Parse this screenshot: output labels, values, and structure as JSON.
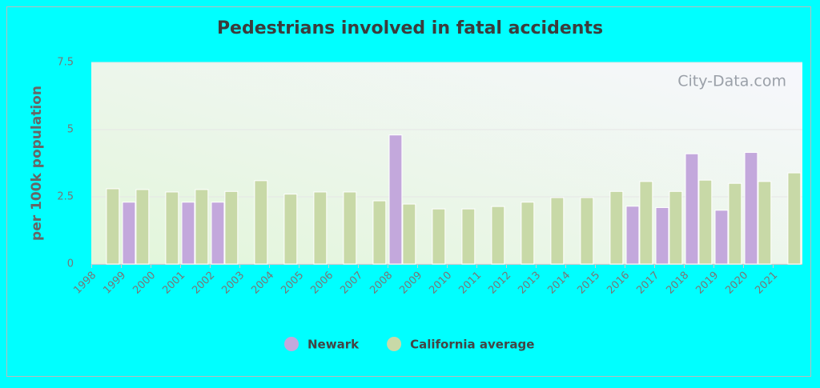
{
  "chart_data": {
    "type": "bar",
    "title": "Pedestrians involved in fatal accidents",
    "y_label": "per 100k population",
    "watermark": "City-Data.com",
    "categories": [
      "1998",
      "1999",
      "2000",
      "2001",
      "2002",
      "2003",
      "2004",
      "2005",
      "2006",
      "2007",
      "2008",
      "2009",
      "2010",
      "2011",
      "2012",
      "2013",
      "2014",
      "2015",
      "2016",
      "2017",
      "2018",
      "2019",
      "2020",
      "2021"
    ],
    "series": [
      {
        "name": "Newark",
        "color": "#c3a8dc",
        "values": [
          null,
          2.3,
          null,
          2.3,
          2.3,
          null,
          null,
          null,
          null,
          null,
          4.8,
          null,
          null,
          null,
          null,
          null,
          null,
          null,
          2.15,
          2.1,
          4.1,
          2.0,
          4.15,
          null
        ]
      },
      {
        "name": "California average",
        "color": "#c8d9a7",
        "values": [
          2.8,
          2.77,
          2.68,
          2.77,
          2.7,
          3.1,
          2.6,
          2.68,
          2.68,
          2.35,
          2.23,
          2.05,
          2.05,
          2.14,
          2.3,
          2.47,
          2.47,
          2.7,
          3.07,
          2.7,
          3.12,
          3.0,
          3.07,
          3.39
        ]
      }
    ],
    "ylim": [
      0,
      7.5
    ],
    "yticks": [
      0,
      2.5,
      5,
      7.5
    ],
    "grid": true
  }
}
